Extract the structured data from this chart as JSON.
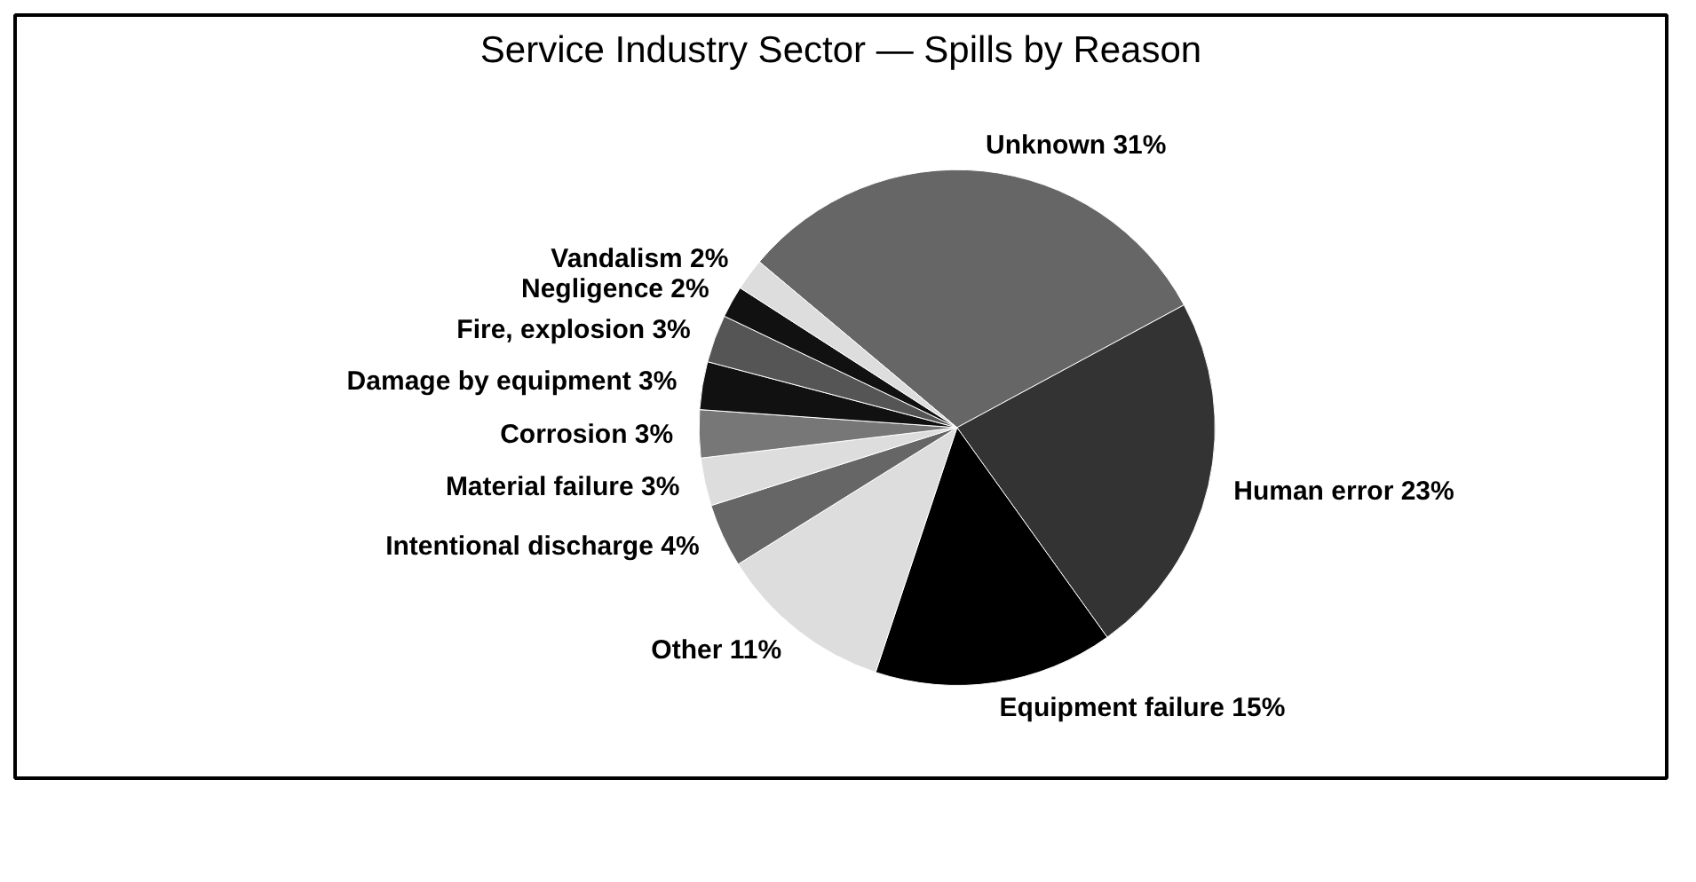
{
  "chart_data": {
    "type": "pie",
    "title": "Service Industry Sector — Spills by Reason",
    "categories": [
      "Unknown",
      "Human error",
      "Equipment failure",
      "Other",
      "Intentional discharge",
      "Material failure",
      "Corrosion",
      "Damage by equipment",
      "Fire, explosion",
      "Negligence",
      "Vandalism"
    ],
    "values": [
      31,
      23,
      15,
      11,
      4,
      3,
      3,
      3,
      3,
      2,
      2
    ],
    "value_labels": [
      "31%",
      "23%",
      "15%",
      "11%",
      "4%",
      "3%",
      "3%",
      "3%",
      "3%",
      "2%",
      "2%"
    ],
    "colors": [
      "#666666",
      "#333333",
      "#000000",
      "#dddddd",
      "#666666",
      "#dddddd",
      "#777777",
      "#111111",
      "#555555",
      "#111111",
      "#dddddd"
    ]
  }
}
